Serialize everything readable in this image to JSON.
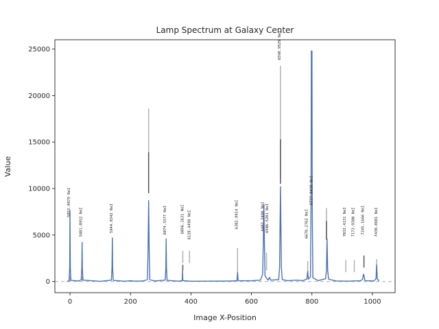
{
  "chart_data": {
    "type": "line",
    "title": "Lamp Spectrum at Galaxy Center",
    "xlabel": "Image X-Position",
    "ylabel": "Value",
    "xlim": [
      -50,
      1075
    ],
    "ylim": [
      -1200,
      26000
    ],
    "grid": false,
    "x_ticks": [
      0,
      200,
      400,
      600,
      800,
      1000
    ],
    "y_ticks": [
      0,
      5000,
      10000,
      15000,
      20000,
      25000
    ],
    "colors": {
      "spectrum": "#4c72b0",
      "marker_gray": "#b0b0b0",
      "marker_dark": "#555555",
      "baseline": "#aaaaaa"
    },
    "series": [
      {
        "values": [
          {
            "x": -10,
            "y": 0
          },
          {
            "x": -3,
            "y": 80
          },
          {
            "x": -1,
            "y": 1500
          },
          {
            "x": 0,
            "y": 7600
          },
          {
            "x": 1,
            "y": 1500
          },
          {
            "x": 3,
            "y": 120
          },
          {
            "x": 30,
            "y": 60
          },
          {
            "x": 37,
            "y": 200
          },
          {
            "x": 39,
            "y": 1400
          },
          {
            "x": 40,
            "y": 4200
          },
          {
            "x": 41,
            "y": 1400
          },
          {
            "x": 43,
            "y": 150
          },
          {
            "x": 100,
            "y": 20
          },
          {
            "x": 137,
            "y": 150
          },
          {
            "x": 139,
            "y": 1500
          },
          {
            "x": 140,
            "y": 4700
          },
          {
            "x": 141,
            "y": 1500
          },
          {
            "x": 143,
            "y": 120
          },
          {
            "x": 180,
            "y": 30
          },
          {
            "x": 200,
            "y": 80
          },
          {
            "x": 215,
            "y": 40
          },
          {
            "x": 240,
            "y": 50
          },
          {
            "x": 256,
            "y": 200
          },
          {
            "x": 258,
            "y": 3000
          },
          {
            "x": 260,
            "y": 8700
          },
          {
            "x": 262,
            "y": 3000
          },
          {
            "x": 264,
            "y": 200
          },
          {
            "x": 280,
            "y": 60
          },
          {
            "x": 315,
            "y": 150
          },
          {
            "x": 317,
            "y": 1500
          },
          {
            "x": 318,
            "y": 4600
          },
          {
            "x": 319,
            "y": 1500
          },
          {
            "x": 321,
            "y": 120
          },
          {
            "x": 360,
            "y": 40
          },
          {
            "x": 371,
            "y": 100
          },
          {
            "x": 372,
            "y": 1200
          },
          {
            "x": 373,
            "y": 100
          },
          {
            "x": 400,
            "y": 30
          },
          {
            "x": 470,
            "y": 40
          },
          {
            "x": 530,
            "y": 50
          },
          {
            "x": 552,
            "y": 80
          },
          {
            "x": 554,
            "y": 1000
          },
          {
            "x": 556,
            "y": 80
          },
          {
            "x": 600,
            "y": 80
          },
          {
            "x": 630,
            "y": 150
          },
          {
            "x": 637,
            "y": 800
          },
          {
            "x": 639,
            "y": 4000
          },
          {
            "x": 641,
            "y": 8300
          },
          {
            "x": 643,
            "y": 4000
          },
          {
            "x": 645,
            "y": 600
          },
          {
            "x": 655,
            "y": 150
          },
          {
            "x": 660,
            "y": 450
          },
          {
            "x": 663,
            "y": 150
          },
          {
            "x": 690,
            "y": 200
          },
          {
            "x": 693,
            "y": 1500
          },
          {
            "x": 696,
            "y": 10200
          },
          {
            "x": 699,
            "y": 1500
          },
          {
            "x": 702,
            "y": 200
          },
          {
            "x": 720,
            "y": 100
          },
          {
            "x": 750,
            "y": 150
          },
          {
            "x": 770,
            "y": 100
          },
          {
            "x": 783,
            "y": 250
          },
          {
            "x": 786,
            "y": 1100
          },
          {
            "x": 788,
            "y": 250
          },
          {
            "x": 795,
            "y": 500
          },
          {
            "x": 797,
            "y": 8000
          },
          {
            "x": 798,
            "y": 24800
          },
          {
            "x": 800,
            "y": 24800
          },
          {
            "x": 801,
            "y": 8000
          },
          {
            "x": 803,
            "y": 400
          },
          {
            "x": 820,
            "y": 100
          },
          {
            "x": 845,
            "y": 300
          },
          {
            "x": 848,
            "y": 1200
          },
          {
            "x": 850,
            "y": 4600
          },
          {
            "x": 852,
            "y": 1200
          },
          {
            "x": 855,
            "y": 250
          },
          {
            "x": 880,
            "y": 60
          },
          {
            "x": 920,
            "y": 40
          },
          {
            "x": 960,
            "y": 80
          },
          {
            "x": 967,
            "y": 200
          },
          {
            "x": 969,
            "y": 500
          },
          {
            "x": 971,
            "y": 800
          },
          {
            "x": 973,
            "y": 500
          },
          {
            "x": 975,
            "y": 100
          },
          {
            "x": 1005,
            "y": 60
          },
          {
            "x": 1012,
            "y": 300
          },
          {
            "x": 1014,
            "y": 1800
          },
          {
            "x": 1016,
            "y": 300
          },
          {
            "x": 1022,
            "y": 40
          }
        ]
      }
    ],
    "reference_markers": [
      {
        "x": 0,
        "y0": 0,
        "y1": 600,
        "color": "marker_gray"
      },
      {
        "x": 40,
        "y0": 0,
        "y1": 500,
        "color": "marker_gray"
      },
      {
        "x": 260,
        "y0": 9500,
        "y1": 18600,
        "color": "marker_gray"
      },
      {
        "x": 260,
        "y0": 9500,
        "y1": 13900,
        "color": "marker_dark"
      },
      {
        "x": 373,
        "y0": 2000,
        "y1": 3300,
        "color": "marker_gray"
      },
      {
        "x": 373,
        "y0": 1200,
        "y1": 1800,
        "color": "marker_dark"
      },
      {
        "x": 395,
        "y0": 2000,
        "y1": 3300,
        "color": "marker_gray"
      },
      {
        "x": 554,
        "y0": 400,
        "y1": 3600,
        "color": "marker_gray"
      },
      {
        "x": 650,
        "y0": 1200,
        "y1": 3100,
        "color": "marker_gray"
      },
      {
        "x": 696,
        "y0": 21200,
        "y1": 23200,
        "color": "marker_gray"
      },
      {
        "x": 696,
        "y0": 11000,
        "y1": 21200,
        "color": "marker_gray"
      },
      {
        "x": 696,
        "y0": 10500,
        "y1": 15300,
        "color": "marker_dark"
      },
      {
        "x": 786,
        "y0": 800,
        "y1": 2200,
        "color": "marker_gray"
      },
      {
        "x": 848,
        "y0": 4500,
        "y1": 7900,
        "color": "marker_gray"
      },
      {
        "x": 848,
        "y0": 4500,
        "y1": 6500,
        "color": "marker_dark"
      },
      {
        "x": 912,
        "y0": 1000,
        "y1": 2300,
        "color": "marker_gray"
      },
      {
        "x": 940,
        "y0": 1000,
        "y1": 2300,
        "color": "marker_gray"
      },
      {
        "x": 972,
        "y0": 1500,
        "y1": 2800,
        "color": "marker_dark"
      },
      {
        "x": 1014,
        "y0": 1200,
        "y1": 2400,
        "color": "marker_gray"
      }
    ],
    "line_labels": [
      {
        "x": 0,
        "y": 8500,
        "text": "5852.4879 NeI"
      },
      {
        "x": 40,
        "y": 6400,
        "text": "5881.8952 NeI"
      },
      {
        "x": 140,
        "y": 6800,
        "text": "5944.8342 NeI"
      },
      {
        "x": 318,
        "y": 6600,
        "text": "6074.3377 NeI"
      },
      {
        "x": 375,
        "y": 6700,
        "text": "6096.1631 NeI"
      },
      {
        "x": 398,
        "y": 6100,
        "text": "6128.4498 NeI"
      },
      {
        "x": 555,
        "y": 7200,
        "text": "6382.9914 NeI"
      },
      {
        "x": 641,
        "y": 7000,
        "text": "6402.2480 NeI"
      },
      {
        "x": 655,
        "y": 6800,
        "text": "6506.5281 NeI"
      },
      {
        "x": 696,
        "y": 25400,
        "text": "6598.9529 NeI"
      },
      {
        "x": 786,
        "y": 6200,
        "text": "6678.2762 NeI"
      },
      {
        "x": 802,
        "y": 9800,
        "text": "6717.0430 NeI"
      },
      {
        "x": 912,
        "y": 6400,
        "text": "7032.4131 NeI"
      },
      {
        "x": 940,
        "y": 6400,
        "text": "7173.9380 NeI"
      },
      {
        "x": 972,
        "y": 6600,
        "text": "7245.1666 NeI"
      },
      {
        "x": 1016,
        "y": 6400,
        "text": "7438.8981 NeI"
      }
    ]
  }
}
